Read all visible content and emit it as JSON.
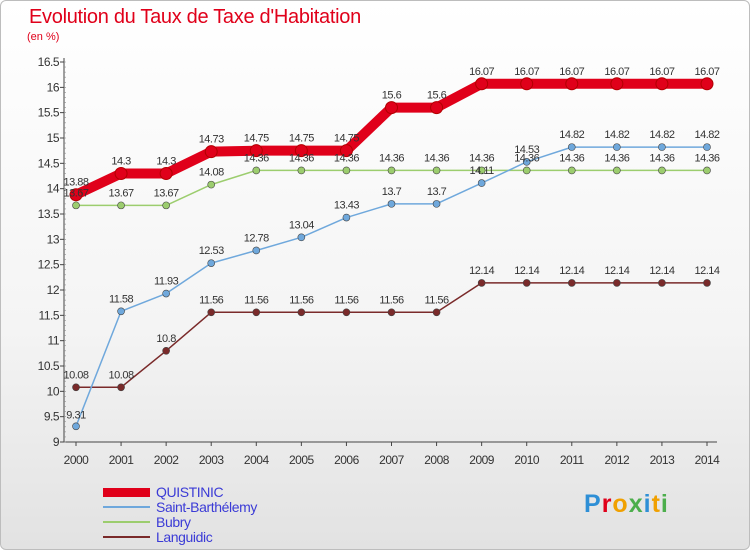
{
  "title": "Evolution du Taux de Taxe d'Habitation",
  "unit_label": "(en %)",
  "logo_text": "Proxiti",
  "chart_data": {
    "type": "line",
    "title": "Evolution du Taux de Taxe d'Habitation",
    "ylabel": "(en %)",
    "xlabel": "",
    "x": [
      2000,
      2001,
      2002,
      2003,
      2004,
      2005,
      2006,
      2007,
      2008,
      2009,
      2010,
      2011,
      2012,
      2013,
      2014
    ],
    "ylim": [
      9,
      16.5
    ],
    "yticks": [
      9,
      9.5,
      10,
      10.5,
      11,
      11.5,
      12,
      12.5,
      13,
      13.5,
      14,
      14.5,
      15,
      15.5,
      16,
      16.5
    ],
    "grid": false,
    "legend_position": "bottom-left",
    "series": [
      {
        "name": "QUISTINIC",
        "color": "#e0001a",
        "values": [
          13.88,
          14.3,
          14.3,
          14.73,
          14.75,
          14.75,
          14.75,
          15.6,
          15.6,
          16.07,
          16.07,
          16.07,
          16.07,
          16.07,
          16.07
        ]
      },
      {
        "name": "Saint-Barthélemy",
        "color": "#6fa8dc",
        "values": [
          9.31,
          11.58,
          11.93,
          12.53,
          12.78,
          13.04,
          13.43,
          13.7,
          13.7,
          14.11,
          14.53,
          14.82,
          14.82,
          14.82,
          14.82
        ]
      },
      {
        "name": "Bubry",
        "color": "#9ccd6e",
        "values": [
          13.67,
          13.67,
          13.67,
          14.08,
          14.36,
          14.36,
          14.36,
          14.36,
          14.36,
          14.36,
          14.36,
          14.36,
          14.36,
          14.36,
          14.36
        ]
      },
      {
        "name": "Languidic",
        "color": "#7a2a2a",
        "values": [
          10.08,
          10.08,
          10.8,
          11.56,
          11.56,
          11.56,
          11.56,
          11.56,
          11.56,
          12.14,
          12.14,
          12.14,
          12.14,
          12.14,
          12.14
        ]
      }
    ]
  }
}
